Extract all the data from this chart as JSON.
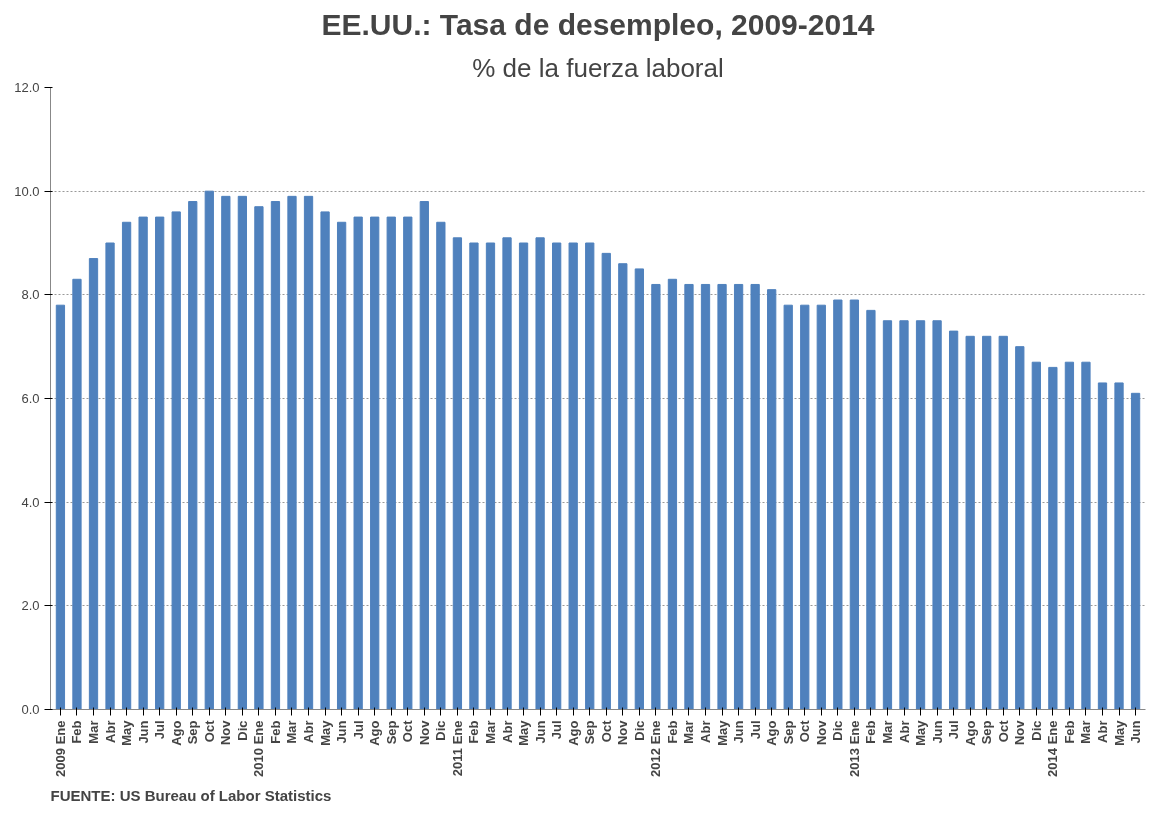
{
  "chart_data": {
    "type": "bar",
    "title": "EE.UU.: Tasa de desempleo, 2009-2014",
    "subtitle": "% de la fuerza laboral",
    "categories": [
      "2009 Ene",
      "Feb",
      "Mar",
      "Abr",
      "May",
      "Jun",
      "Jul",
      "Ago",
      "Sep",
      "Oct",
      "Nov",
      "Dic",
      "2010 Ene",
      "Feb",
      "Mar",
      "Abr",
      "May",
      "Jun",
      "Jul",
      "Ago",
      "Sep",
      "Oct",
      "Nov",
      "Dic",
      "2011 Ene",
      "Feb",
      "Mar",
      "Abr",
      "May",
      "Jun",
      "Jul",
      "Ago",
      "Sep",
      "Oct",
      "Nov",
      "Dic",
      "2012 Ene",
      "Feb",
      "Mar",
      "Abr",
      "May",
      "Jun",
      "Jul",
      "Ago",
      "Sep",
      "Oct",
      "Nov",
      "Dic",
      "2013 Ene",
      "Feb",
      "Mar",
      "Abr",
      "May",
      "Jun",
      "Jul",
      "Ago",
      "Sep",
      "Oct",
      "Nov",
      "Dic",
      "2014 Ene",
      "Feb",
      "Mar",
      "Abr",
      "May",
      "Jun"
    ],
    "values": [
      7.8,
      8.3,
      8.7,
      9.0,
      9.4,
      9.5,
      9.5,
      9.6,
      9.8,
      10.0,
      9.9,
      9.9,
      9.7,
      9.8,
      9.9,
      9.9,
      9.6,
      9.4,
      9.5,
      9.5,
      9.5,
      9.5,
      9.8,
      9.4,
      9.1,
      9.0,
      9.0,
      9.1,
      9.0,
      9.1,
      9.0,
      9.0,
      9.0,
      8.8,
      8.6,
      8.5,
      8.2,
      8.3,
      8.2,
      8.2,
      8.2,
      8.2,
      8.2,
      8.1,
      7.8,
      7.8,
      7.8,
      7.9,
      7.9,
      7.7,
      7.5,
      7.5,
      7.5,
      7.5,
      7.3,
      7.2,
      7.2,
      7.2,
      7.0,
      6.7,
      6.6,
      6.7,
      6.7,
      6.3,
      6.3,
      6.1
    ],
    "color": "#4f81bd",
    "ylim": [
      0,
      12
    ],
    "yticks": [
      {
        "value": 0,
        "label": "0.0"
      },
      {
        "value": 2,
        "label": "2.0"
      },
      {
        "value": 4,
        "label": "4.0"
      },
      {
        "value": 6,
        "label": "6.0"
      },
      {
        "value": 8,
        "label": "8.0"
      },
      {
        "value": 10,
        "label": "10.0"
      },
      {
        "value": 12,
        "label": "12.0"
      }
    ],
    "grid": "y",
    "annotations": [
      "FUENTE: US Bureau of Labor Statistics"
    ]
  }
}
